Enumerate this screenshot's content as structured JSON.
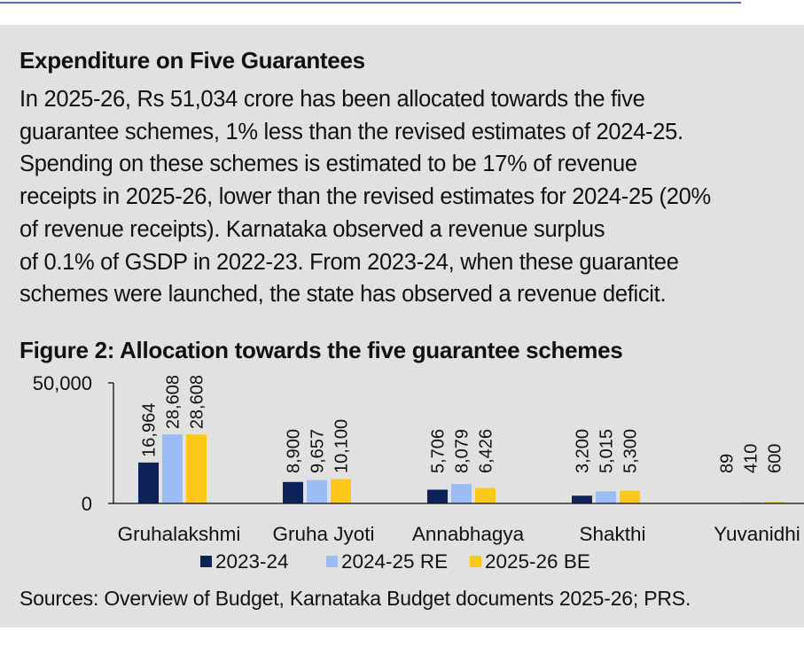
{
  "box": {
    "title": "Expenditure on Five Guarantees",
    "lines": [
      "In 2025-26, Rs 51,034 crore has been allocated towards the five",
      "guarantee schemes, 1% less than the revised estimates of 2024-25.",
      "Spending on these schemes is estimated to be 17% of revenue",
      "receipts in 2025-26, lower than the revised estimates for 2024-25 (20%",
      "of revenue receipts).  Karnataka observed a revenue surplus",
      "of 0.1% of GSDP in 2022-23. From 2023-24, when these guarantee",
      "schemes were launched, the state has observed a revenue deficit."
    ]
  },
  "figure_title": "Figure 2: Allocation towards the five guarantee schemes",
  "sources": "Sources: Overview of Budget, Karnataka Budget documents 2025-26; PRS.",
  "colors": {
    "s2023": "#0d2259",
    "s2024": "#9bbcf5",
    "s2025": "#fdc81a",
    "panel": "#e1e1e1",
    "rule": "#4f6fb3"
  },
  "chart_data": {
    "type": "bar",
    "title": "Figure 2: Allocation towards the five guarantee schemes",
    "xlabel": "",
    "ylabel": "",
    "ylim": [
      0,
      50000
    ],
    "yticks": [
      0,
      50000
    ],
    "ytick_labels": [
      "0",
      "50,000"
    ],
    "categories": [
      "Gruhalakshmi",
      "Gruha Jyoti",
      "Annabhagya",
      "Shakthi",
      "Yuvanidhi"
    ],
    "series": [
      {
        "name": "2023-24",
        "color": "#0d2259",
        "values": [
          16964,
          8900,
          5706,
          3200,
          89
        ],
        "labels": [
          "16,964",
          "8,900",
          "5,706",
          "3,200",
          "89"
        ]
      },
      {
        "name": "2024-25 RE",
        "color": "#9bbcf5",
        "values": [
          28608,
          9657,
          8079,
          5015,
          410
        ],
        "labels": [
          "28,608",
          "9,657",
          "8,079",
          "5,015",
          "410"
        ]
      },
      {
        "name": "2025-26 BE",
        "color": "#fdc81a",
        "values": [
          28608,
          10100,
          6426,
          5300,
          600
        ],
        "labels": [
          "28,608",
          "10,100",
          "6,426",
          "5,300",
          "600"
        ]
      }
    ],
    "legend": "bottom-center",
    "grid": false
  }
}
